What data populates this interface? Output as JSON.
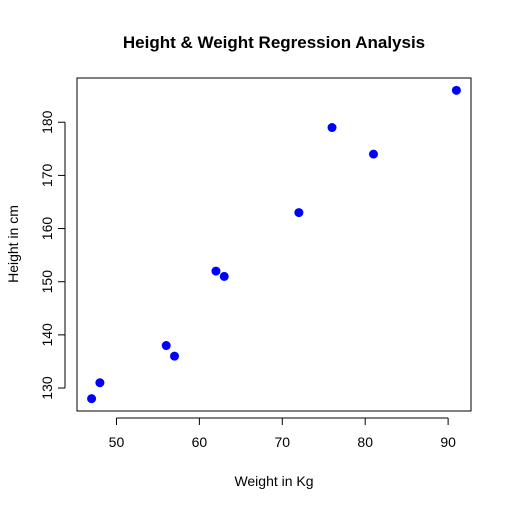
{
  "chart_data": {
    "type": "scatter",
    "title": "Height & Weight Regression Analysis",
    "xlabel": "Weight in Kg",
    "ylabel": "Height in cm",
    "xlim": [
      45.24,
      92.76
    ],
    "ylim": [
      125.68,
      188.32
    ],
    "xticks": [
      50,
      60,
      70,
      80,
      90
    ],
    "yticks": [
      130,
      140,
      150,
      160,
      170,
      180
    ],
    "x": [
      47,
      48,
      56,
      57,
      62,
      63,
      72,
      76,
      81,
      91
    ],
    "y": [
      128,
      131,
      138,
      136,
      152,
      151,
      163,
      179,
      174,
      186
    ],
    "point_color": "#0000FF",
    "grid": false,
    "legend": "none"
  }
}
